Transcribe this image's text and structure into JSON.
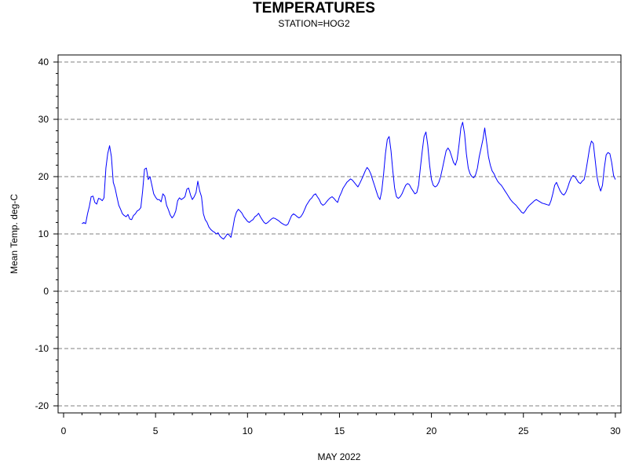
{
  "chart_data": {
    "type": "line",
    "title": "TEMPERATURES",
    "subtitle": "STATION=HOG2",
    "xlabel": "MAY 2022",
    "ylabel": "Mean Temp. deg-C",
    "xlim": [
      0,
      30.3
    ],
    "ylim": [
      -21.5,
      41
    ],
    "x_ticks": [
      0,
      5,
      10,
      15,
      20,
      25,
      30
    ],
    "y_ticks": [
      -20,
      -10,
      0,
      10,
      20,
      30,
      40
    ],
    "grid": "horizontal-dashed",
    "series": [
      {
        "color": "#0000ff",
        "points": [
          [
            1.0,
            11.8
          ],
          [
            1.1,
            12.0
          ],
          [
            1.2,
            11.8
          ],
          [
            1.3,
            13.5
          ],
          [
            1.4,
            14.8
          ],
          [
            1.5,
            16.5
          ],
          [
            1.6,
            16.6
          ],
          [
            1.7,
            15.5
          ],
          [
            1.8,
            15.2
          ],
          [
            1.9,
            16.2
          ],
          [
            2.0,
            16.1
          ],
          [
            2.1,
            15.8
          ],
          [
            2.2,
            16.3
          ],
          [
            2.3,
            21.5
          ],
          [
            2.4,
            24.0
          ],
          [
            2.5,
            25.4
          ],
          [
            2.6,
            23.5
          ],
          [
            2.7,
            19.0
          ],
          [
            2.8,
            18.0
          ],
          [
            2.9,
            16.5
          ],
          [
            3.0,
            15.0
          ],
          [
            3.1,
            14.3
          ],
          [
            3.2,
            13.5
          ],
          [
            3.3,
            13.2
          ],
          [
            3.4,
            13.0
          ],
          [
            3.5,
            13.4
          ],
          [
            3.6,
            12.6
          ],
          [
            3.7,
            12.5
          ],
          [
            3.8,
            13.2
          ],
          [
            3.9,
            13.5
          ],
          [
            4.0,
            14.0
          ],
          [
            4.1,
            14.2
          ],
          [
            4.2,
            14.6
          ],
          [
            4.3,
            17.5
          ],
          [
            4.4,
            21.3
          ],
          [
            4.5,
            21.5
          ],
          [
            4.6,
            19.5
          ],
          [
            4.7,
            20.0
          ],
          [
            4.8,
            18.5
          ],
          [
            4.9,
            17.0
          ],
          [
            5.0,
            16.4
          ],
          [
            5.1,
            16.0
          ],
          [
            5.2,
            16.0
          ],
          [
            5.3,
            15.6
          ],
          [
            5.4,
            17.0
          ],
          [
            5.5,
            16.6
          ],
          [
            5.6,
            15.0
          ],
          [
            5.7,
            14.2
          ],
          [
            5.8,
            13.3
          ],
          [
            5.9,
            12.8
          ],
          [
            6.0,
            13.2
          ],
          [
            6.1,
            14.0
          ],
          [
            6.2,
            15.8
          ],
          [
            6.3,
            16.3
          ],
          [
            6.4,
            16.0
          ],
          [
            6.5,
            16.2
          ],
          [
            6.6,
            16.5
          ],
          [
            6.7,
            17.8
          ],
          [
            6.8,
            18.0
          ],
          [
            6.9,
            16.8
          ],
          [
            7.0,
            16.0
          ],
          [
            7.1,
            16.5
          ],
          [
            7.2,
            17.2
          ],
          [
            7.3,
            19.2
          ],
          [
            7.4,
            17.5
          ],
          [
            7.5,
            16.5
          ],
          [
            7.6,
            13.5
          ],
          [
            7.7,
            12.5
          ],
          [
            7.8,
            12.0
          ],
          [
            7.9,
            11.2
          ],
          [
            8.0,
            10.8
          ],
          [
            8.1,
            10.5
          ],
          [
            8.2,
            10.3
          ],
          [
            8.3,
            10.0
          ],
          [
            8.4,
            10.2
          ],
          [
            8.5,
            9.6
          ],
          [
            8.6,
            9.3
          ],
          [
            8.7,
            9.1
          ],
          [
            8.8,
            9.5
          ],
          [
            8.9,
            10.0
          ],
          [
            9.0,
            9.8
          ],
          [
            9.1,
            9.4
          ],
          [
            9.2,
            11.0
          ],
          [
            9.3,
            12.8
          ],
          [
            9.4,
            13.8
          ],
          [
            9.5,
            14.3
          ],
          [
            9.6,
            14.0
          ],
          [
            9.7,
            13.6
          ],
          [
            9.8,
            13.0
          ],
          [
            9.9,
            12.6
          ],
          [
            10.0,
            12.2
          ],
          [
            10.1,
            12.0
          ],
          [
            10.2,
            12.3
          ],
          [
            10.3,
            12.5
          ],
          [
            10.4,
            13.0
          ],
          [
            10.5,
            13.2
          ],
          [
            10.6,
            13.6
          ],
          [
            10.7,
            13.0
          ],
          [
            10.8,
            12.5
          ],
          [
            10.9,
            12.0
          ],
          [
            11.0,
            11.8
          ],
          [
            11.1,
            12.0
          ],
          [
            11.2,
            12.3
          ],
          [
            11.3,
            12.6
          ],
          [
            11.4,
            12.8
          ],
          [
            11.5,
            12.7
          ],
          [
            11.6,
            12.5
          ],
          [
            11.7,
            12.3
          ],
          [
            11.8,
            12.0
          ],
          [
            11.9,
            11.8
          ],
          [
            12.0,
            11.6
          ],
          [
            12.1,
            11.5
          ],
          [
            12.2,
            11.7
          ],
          [
            12.3,
            12.5
          ],
          [
            12.4,
            13.2
          ],
          [
            12.5,
            13.5
          ],
          [
            12.6,
            13.3
          ],
          [
            12.7,
            13.0
          ],
          [
            12.8,
            12.8
          ],
          [
            12.9,
            13.0
          ],
          [
            13.0,
            13.5
          ],
          [
            13.1,
            14.2
          ],
          [
            13.2,
            15.0
          ],
          [
            13.3,
            15.5
          ],
          [
            13.4,
            16.0
          ],
          [
            13.5,
            16.3
          ],
          [
            13.6,
            16.8
          ],
          [
            13.7,
            17.0
          ],
          [
            13.8,
            16.5
          ],
          [
            13.9,
            16.0
          ],
          [
            14.0,
            15.3
          ],
          [
            14.1,
            15.0
          ],
          [
            14.2,
            15.2
          ],
          [
            14.3,
            15.6
          ],
          [
            14.4,
            16.0
          ],
          [
            14.5,
            16.3
          ],
          [
            14.6,
            16.5
          ],
          [
            14.7,
            16.2
          ],
          [
            14.8,
            15.8
          ],
          [
            14.9,
            15.5
          ],
          [
            15.0,
            16.5
          ],
          [
            15.1,
            17.2
          ],
          [
            15.2,
            18.0
          ],
          [
            15.3,
            18.5
          ],
          [
            15.4,
            19.0
          ],
          [
            15.5,
            19.3
          ],
          [
            15.6,
            19.6
          ],
          [
            15.7,
            19.4
          ],
          [
            15.8,
            19.0
          ],
          [
            15.9,
            18.6
          ],
          [
            16.0,
            18.2
          ],
          [
            16.1,
            18.8
          ],
          [
            16.2,
            19.5
          ],
          [
            16.3,
            20.2
          ],
          [
            16.4,
            21.0
          ],
          [
            16.5,
            21.6
          ],
          [
            16.6,
            21.2
          ],
          [
            16.7,
            20.5
          ],
          [
            16.8,
            19.5
          ],
          [
            16.9,
            18.5
          ],
          [
            17.0,
            17.5
          ],
          [
            17.1,
            16.5
          ],
          [
            17.2,
            16.0
          ],
          [
            17.3,
            17.5
          ],
          [
            17.4,
            20.5
          ],
          [
            17.5,
            24.0
          ],
          [
            17.6,
            26.5
          ],
          [
            17.7,
            27.0
          ],
          [
            17.8,
            24.5
          ],
          [
            17.9,
            21.0
          ],
          [
            18.0,
            18.0
          ],
          [
            18.1,
            16.5
          ],
          [
            18.2,
            16.2
          ],
          [
            18.3,
            16.5
          ],
          [
            18.4,
            17.0
          ],
          [
            18.5,
            17.8
          ],
          [
            18.6,
            18.5
          ],
          [
            18.7,
            18.8
          ],
          [
            18.8,
            18.6
          ],
          [
            18.9,
            18.0
          ],
          [
            19.0,
            17.5
          ],
          [
            19.1,
            17.0
          ],
          [
            19.2,
            17.2
          ],
          [
            19.3,
            18.5
          ],
          [
            19.4,
            21.5
          ],
          [
            19.5,
            24.5
          ],
          [
            19.6,
            27.0
          ],
          [
            19.7,
            27.8
          ],
          [
            19.8,
            25.5
          ],
          [
            19.9,
            22.0
          ],
          [
            20.0,
            19.5
          ],
          [
            20.1,
            18.5
          ],
          [
            20.2,
            18.2
          ],
          [
            20.3,
            18.4
          ],
          [
            20.4,
            19.0
          ],
          [
            20.5,
            20.0
          ],
          [
            20.6,
            21.5
          ],
          [
            20.7,
            23.0
          ],
          [
            20.8,
            24.5
          ],
          [
            20.9,
            25.0
          ],
          [
            21.0,
            24.5
          ],
          [
            21.1,
            23.5
          ],
          [
            21.2,
            22.5
          ],
          [
            21.3,
            22.0
          ],
          [
            21.4,
            23.0
          ],
          [
            21.5,
            25.5
          ],
          [
            21.6,
            28.5
          ],
          [
            21.7,
            29.5
          ],
          [
            21.8,
            27.5
          ],
          [
            21.9,
            24.0
          ],
          [
            22.0,
            21.5
          ],
          [
            22.1,
            20.5
          ],
          [
            22.2,
            20.0
          ],
          [
            22.3,
            19.8
          ],
          [
            22.4,
            20.3
          ],
          [
            22.5,
            21.5
          ],
          [
            22.6,
            23.5
          ],
          [
            22.7,
            25.0
          ],
          [
            22.8,
            26.5
          ],
          [
            22.9,
            28.5
          ],
          [
            23.0,
            26.0
          ],
          [
            23.1,
            23.5
          ],
          [
            23.2,
            22.0
          ],
          [
            23.3,
            21.0
          ],
          [
            23.4,
            20.5
          ],
          [
            23.5,
            19.8
          ],
          [
            23.6,
            19.2
          ],
          [
            23.7,
            18.8
          ],
          [
            23.8,
            18.5
          ],
          [
            23.9,
            18.0
          ],
          [
            24.0,
            17.5
          ],
          [
            24.1,
            17.0
          ],
          [
            24.2,
            16.5
          ],
          [
            24.3,
            16.0
          ],
          [
            24.4,
            15.6
          ],
          [
            24.5,
            15.3
          ],
          [
            24.6,
            15.0
          ],
          [
            24.7,
            14.6
          ],
          [
            24.8,
            14.2
          ],
          [
            24.9,
            13.8
          ],
          [
            25.0,
            13.6
          ],
          [
            25.1,
            14.0
          ],
          [
            25.2,
            14.5
          ],
          [
            25.3,
            14.9
          ],
          [
            25.4,
            15.2
          ],
          [
            25.5,
            15.5
          ],
          [
            25.6,
            15.8
          ],
          [
            25.7,
            16.0
          ],
          [
            25.8,
            15.8
          ],
          [
            25.9,
            15.6
          ],
          [
            26.0,
            15.4
          ],
          [
            26.1,
            15.3
          ],
          [
            26.2,
            15.2
          ],
          [
            26.3,
            15.1
          ],
          [
            26.4,
            15.0
          ],
          [
            26.5,
            15.8
          ],
          [
            26.6,
            17.0
          ],
          [
            26.7,
            18.5
          ],
          [
            26.8,
            19.0
          ],
          [
            26.9,
            18.2
          ],
          [
            27.0,
            17.5
          ],
          [
            27.1,
            17.0
          ],
          [
            27.2,
            16.8
          ],
          [
            27.3,
            17.2
          ],
          [
            27.4,
            18.0
          ],
          [
            27.5,
            19.0
          ],
          [
            27.6,
            19.8
          ],
          [
            27.7,
            20.2
          ],
          [
            27.8,
            20.0
          ],
          [
            27.9,
            19.5
          ],
          [
            28.0,
            19.0
          ],
          [
            28.1,
            18.8
          ],
          [
            28.2,
            19.2
          ],
          [
            28.3,
            19.5
          ],
          [
            28.4,
            21.0
          ],
          [
            28.5,
            23.0
          ],
          [
            28.6,
            25.0
          ],
          [
            28.7,
            26.2
          ],
          [
            28.8,
            25.8
          ],
          [
            28.9,
            23.0
          ],
          [
            29.0,
            20.0
          ],
          [
            29.1,
            18.5
          ],
          [
            29.2,
            17.5
          ],
          [
            29.3,
            18.5
          ],
          [
            29.4,
            21.5
          ],
          [
            29.5,
            23.8
          ],
          [
            29.6,
            24.2
          ],
          [
            29.7,
            24.0
          ],
          [
            29.8,
            22.5
          ],
          [
            29.9,
            20.2
          ],
          [
            30.0,
            19.5
          ]
        ]
      }
    ]
  }
}
